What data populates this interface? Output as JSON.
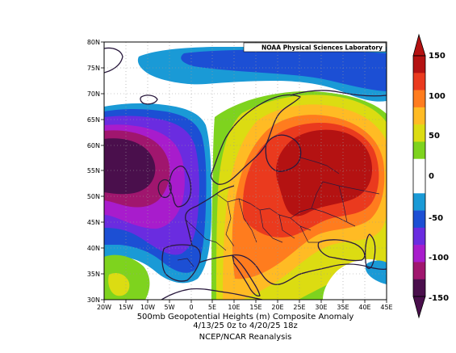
{
  "credit": "NOAA Physical Sciences Laboratory",
  "caption": {
    "line1": "500mb Geopotential Heights (m)    Composite Anomaly",
    "line2": "4/13/25 0z  to 4/20/25 18z",
    "line3": "NCEP/NCAR Reanalysis"
  },
  "lat_labels": [
    "80N",
    "75N",
    "70N",
    "65N",
    "60N",
    "55N",
    "50N",
    "45N",
    "40N",
    "35N",
    "30N"
  ],
  "lon_labels": [
    "20W",
    "15W",
    "10W",
    "5W",
    "0",
    "5E",
    "10E",
    "15E",
    "20E",
    "25E",
    "30E",
    "35E",
    "40E",
    "45E"
  ],
  "colorbar": {
    "labels": [
      "150",
      "100",
      "50",
      "0",
      "-50",
      "-100",
      "-150"
    ],
    "levels": [
      {
        "range": "120 to 150",
        "color": "#b41212"
      },
      {
        "range": "100 to 120",
        "color": "#ea3a1e"
      },
      {
        "range": "80 to 100",
        "color": "#ff7c1e"
      },
      {
        "range": "60 to 80",
        "color": "#ffbb24"
      },
      {
        "range": "40 to 60",
        "color": "#dcdc12"
      },
      {
        "range": "20 to 40",
        "color": "#7ed31e"
      },
      {
        "range": "0 to 20",
        "color": "#ffffff"
      },
      {
        "range": "-20 to 0",
        "color": "#ffffff"
      },
      {
        "range": "-40 to -20",
        "color": "#1a9ad6"
      },
      {
        "range": "-60 to -40",
        "color": "#1c4fd4"
      },
      {
        "range": "-80 to -60",
        "color": "#6a2ce0"
      },
      {
        "range": "-100 to -80",
        "color": "#a81ccc"
      },
      {
        "range": "-120 to -100",
        "color": "#a0166e"
      },
      {
        "range": "-150 to -120",
        "color": "#4a0f4c"
      }
    ]
  },
  "map": {
    "extent": {
      "lon": [
        -20,
        45
      ],
      "lat": [
        30,
        80
      ]
    },
    "field": "500mb geopotential height composite anomaly",
    "anomaly_centers": [
      {
        "name": "positive-center-east-europe",
        "lon": 32,
        "lat": 56,
        "value_approx": 130
      },
      {
        "name": "negative-center-north-atlantic",
        "lon": -17,
        "lat": 55,
        "value_approx": -140
      }
    ]
  }
}
